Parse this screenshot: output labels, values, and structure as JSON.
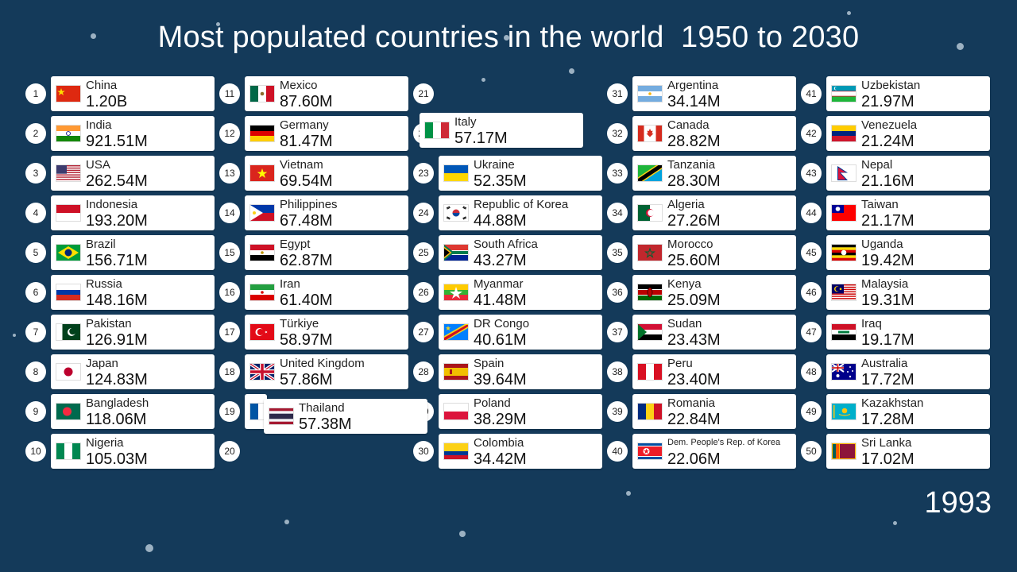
{
  "title": "Most populated countries in the world  1950 to 2030",
  "year": "1993",
  "entries": [
    {
      "rank": "1",
      "name": "China",
      "pop": "1.20B",
      "flag": "cn"
    },
    {
      "rank": "2",
      "name": "India",
      "pop": "921.51M",
      "flag": "in"
    },
    {
      "rank": "3",
      "name": "USA",
      "pop": "262.54M",
      "flag": "us"
    },
    {
      "rank": "4",
      "name": "Indonesia",
      "pop": "193.20M",
      "flag": "id"
    },
    {
      "rank": "5",
      "name": "Brazil",
      "pop": "156.71M",
      "flag": "br"
    },
    {
      "rank": "6",
      "name": "Russia",
      "pop": "148.16M",
      "flag": "ru"
    },
    {
      "rank": "7",
      "name": "Pakistan",
      "pop": "126.91M",
      "flag": "pk"
    },
    {
      "rank": "8",
      "name": "Japan",
      "pop": "124.83M",
      "flag": "jp"
    },
    {
      "rank": "9",
      "name": "Bangladesh",
      "pop": "118.06M",
      "flag": "bd"
    },
    {
      "rank": "10",
      "name": "Nigeria",
      "pop": "105.03M",
      "flag": "ng"
    },
    {
      "rank": "11",
      "name": "Mexico",
      "pop": "87.60M",
      "flag": "mx"
    },
    {
      "rank": "12",
      "name": "Germany",
      "pop": "81.47M",
      "flag": "de"
    },
    {
      "rank": "13",
      "name": "Vietnam",
      "pop": "69.54M",
      "flag": "vn"
    },
    {
      "rank": "14",
      "name": "Philippines",
      "pop": "67.48M",
      "flag": "ph"
    },
    {
      "rank": "15",
      "name": "Egypt",
      "pop": "62.87M",
      "flag": "eg"
    },
    {
      "rank": "16",
      "name": "Iran",
      "pop": "61.40M",
      "flag": "ir"
    },
    {
      "rank": "17",
      "name": "Türkiye",
      "pop": "58.97M",
      "flag": "tr"
    },
    {
      "rank": "18",
      "name": "United Kingdom",
      "pop": "57.86M",
      "flag": "gb"
    },
    {
      "rank": "19",
      "name": "",
      "pop": "",
      "flag": "fr"
    },
    {
      "rank": "20",
      "name": "",
      "pop": "",
      "flag": ""
    },
    {
      "rank": "21",
      "name": "",
      "pop": "",
      "flag": ""
    },
    {
      "rank": "22",
      "name": "",
      "pop": "",
      "flag": ""
    },
    {
      "rank": "23",
      "name": "Ukraine",
      "pop": "52.35M",
      "flag": "ua"
    },
    {
      "rank": "24",
      "name": "Republic of Korea",
      "pop": "44.88M",
      "flag": "kr"
    },
    {
      "rank": "25",
      "name": "South Africa",
      "pop": "43.27M",
      "flag": "za"
    },
    {
      "rank": "26",
      "name": "Myanmar",
      "pop": "41.48M",
      "flag": "mm"
    },
    {
      "rank": "27",
      "name": "DR Congo",
      "pop": "40.61M",
      "flag": "cd"
    },
    {
      "rank": "28",
      "name": "Spain",
      "pop": "39.64M",
      "flag": "es"
    },
    {
      "rank": "29",
      "name": "Poland",
      "pop": "38.29M",
      "flag": "pl"
    },
    {
      "rank": "30",
      "name": "Colombia",
      "pop": "34.42M",
      "flag": "co"
    },
    {
      "rank": "31",
      "name": "Argentina",
      "pop": "34.14M",
      "flag": "ar"
    },
    {
      "rank": "32",
      "name": "Canada",
      "pop": "28.82M",
      "flag": "ca"
    },
    {
      "rank": "33",
      "name": "Tanzania",
      "pop": "28.30M",
      "flag": "tz"
    },
    {
      "rank": "34",
      "name": "Algeria",
      "pop": "27.26M",
      "flag": "dz"
    },
    {
      "rank": "35",
      "name": "Morocco",
      "pop": "25.60M",
      "flag": "ma"
    },
    {
      "rank": "36",
      "name": "Kenya",
      "pop": "25.09M",
      "flag": "ke"
    },
    {
      "rank": "37",
      "name": "Sudan",
      "pop": "23.43M",
      "flag": "sd"
    },
    {
      "rank": "38",
      "name": "Peru",
      "pop": "23.40M",
      "flag": "pe"
    },
    {
      "rank": "39",
      "name": "Romania",
      "pop": "22.84M",
      "flag": "ro"
    },
    {
      "rank": "40",
      "name": "Dem. People's Rep. of Korea",
      "pop": "22.06M",
      "flag": "kp"
    },
    {
      "rank": "41",
      "name": "Uzbekistan",
      "pop": "21.97M",
      "flag": "uz"
    },
    {
      "rank": "42",
      "name": "Venezuela",
      "pop": "21.24M",
      "flag": "ve"
    },
    {
      "rank": "43",
      "name": "Nepal",
      "pop": "21.16M",
      "flag": "np"
    },
    {
      "rank": "44",
      "name": "Taiwan",
      "pop": "21.17M",
      "flag": "tw"
    },
    {
      "rank": "45",
      "name": "Uganda",
      "pop": "19.42M",
      "flag": "ug"
    },
    {
      "rank": "46",
      "name": "Malaysia",
      "pop": "19.31M",
      "flag": "my"
    },
    {
      "rank": "47",
      "name": "Iraq",
      "pop": "19.17M",
      "flag": "iq"
    },
    {
      "rank": "48",
      "name": "Australia",
      "pop": "17.72M",
      "flag": "au"
    },
    {
      "rank": "49",
      "name": "Kazakhstan",
      "pop": "17.28M",
      "flag": "kz"
    },
    {
      "rank": "50",
      "name": "Sri Lanka",
      "pop": "17.02M",
      "flag": "lk"
    }
  ],
  "moving": [
    {
      "name": "Italy",
      "pop": "57.17M",
      "flag": "it"
    },
    {
      "name": "Thailand",
      "pop": "57.38M",
      "flag": "th"
    }
  ]
}
